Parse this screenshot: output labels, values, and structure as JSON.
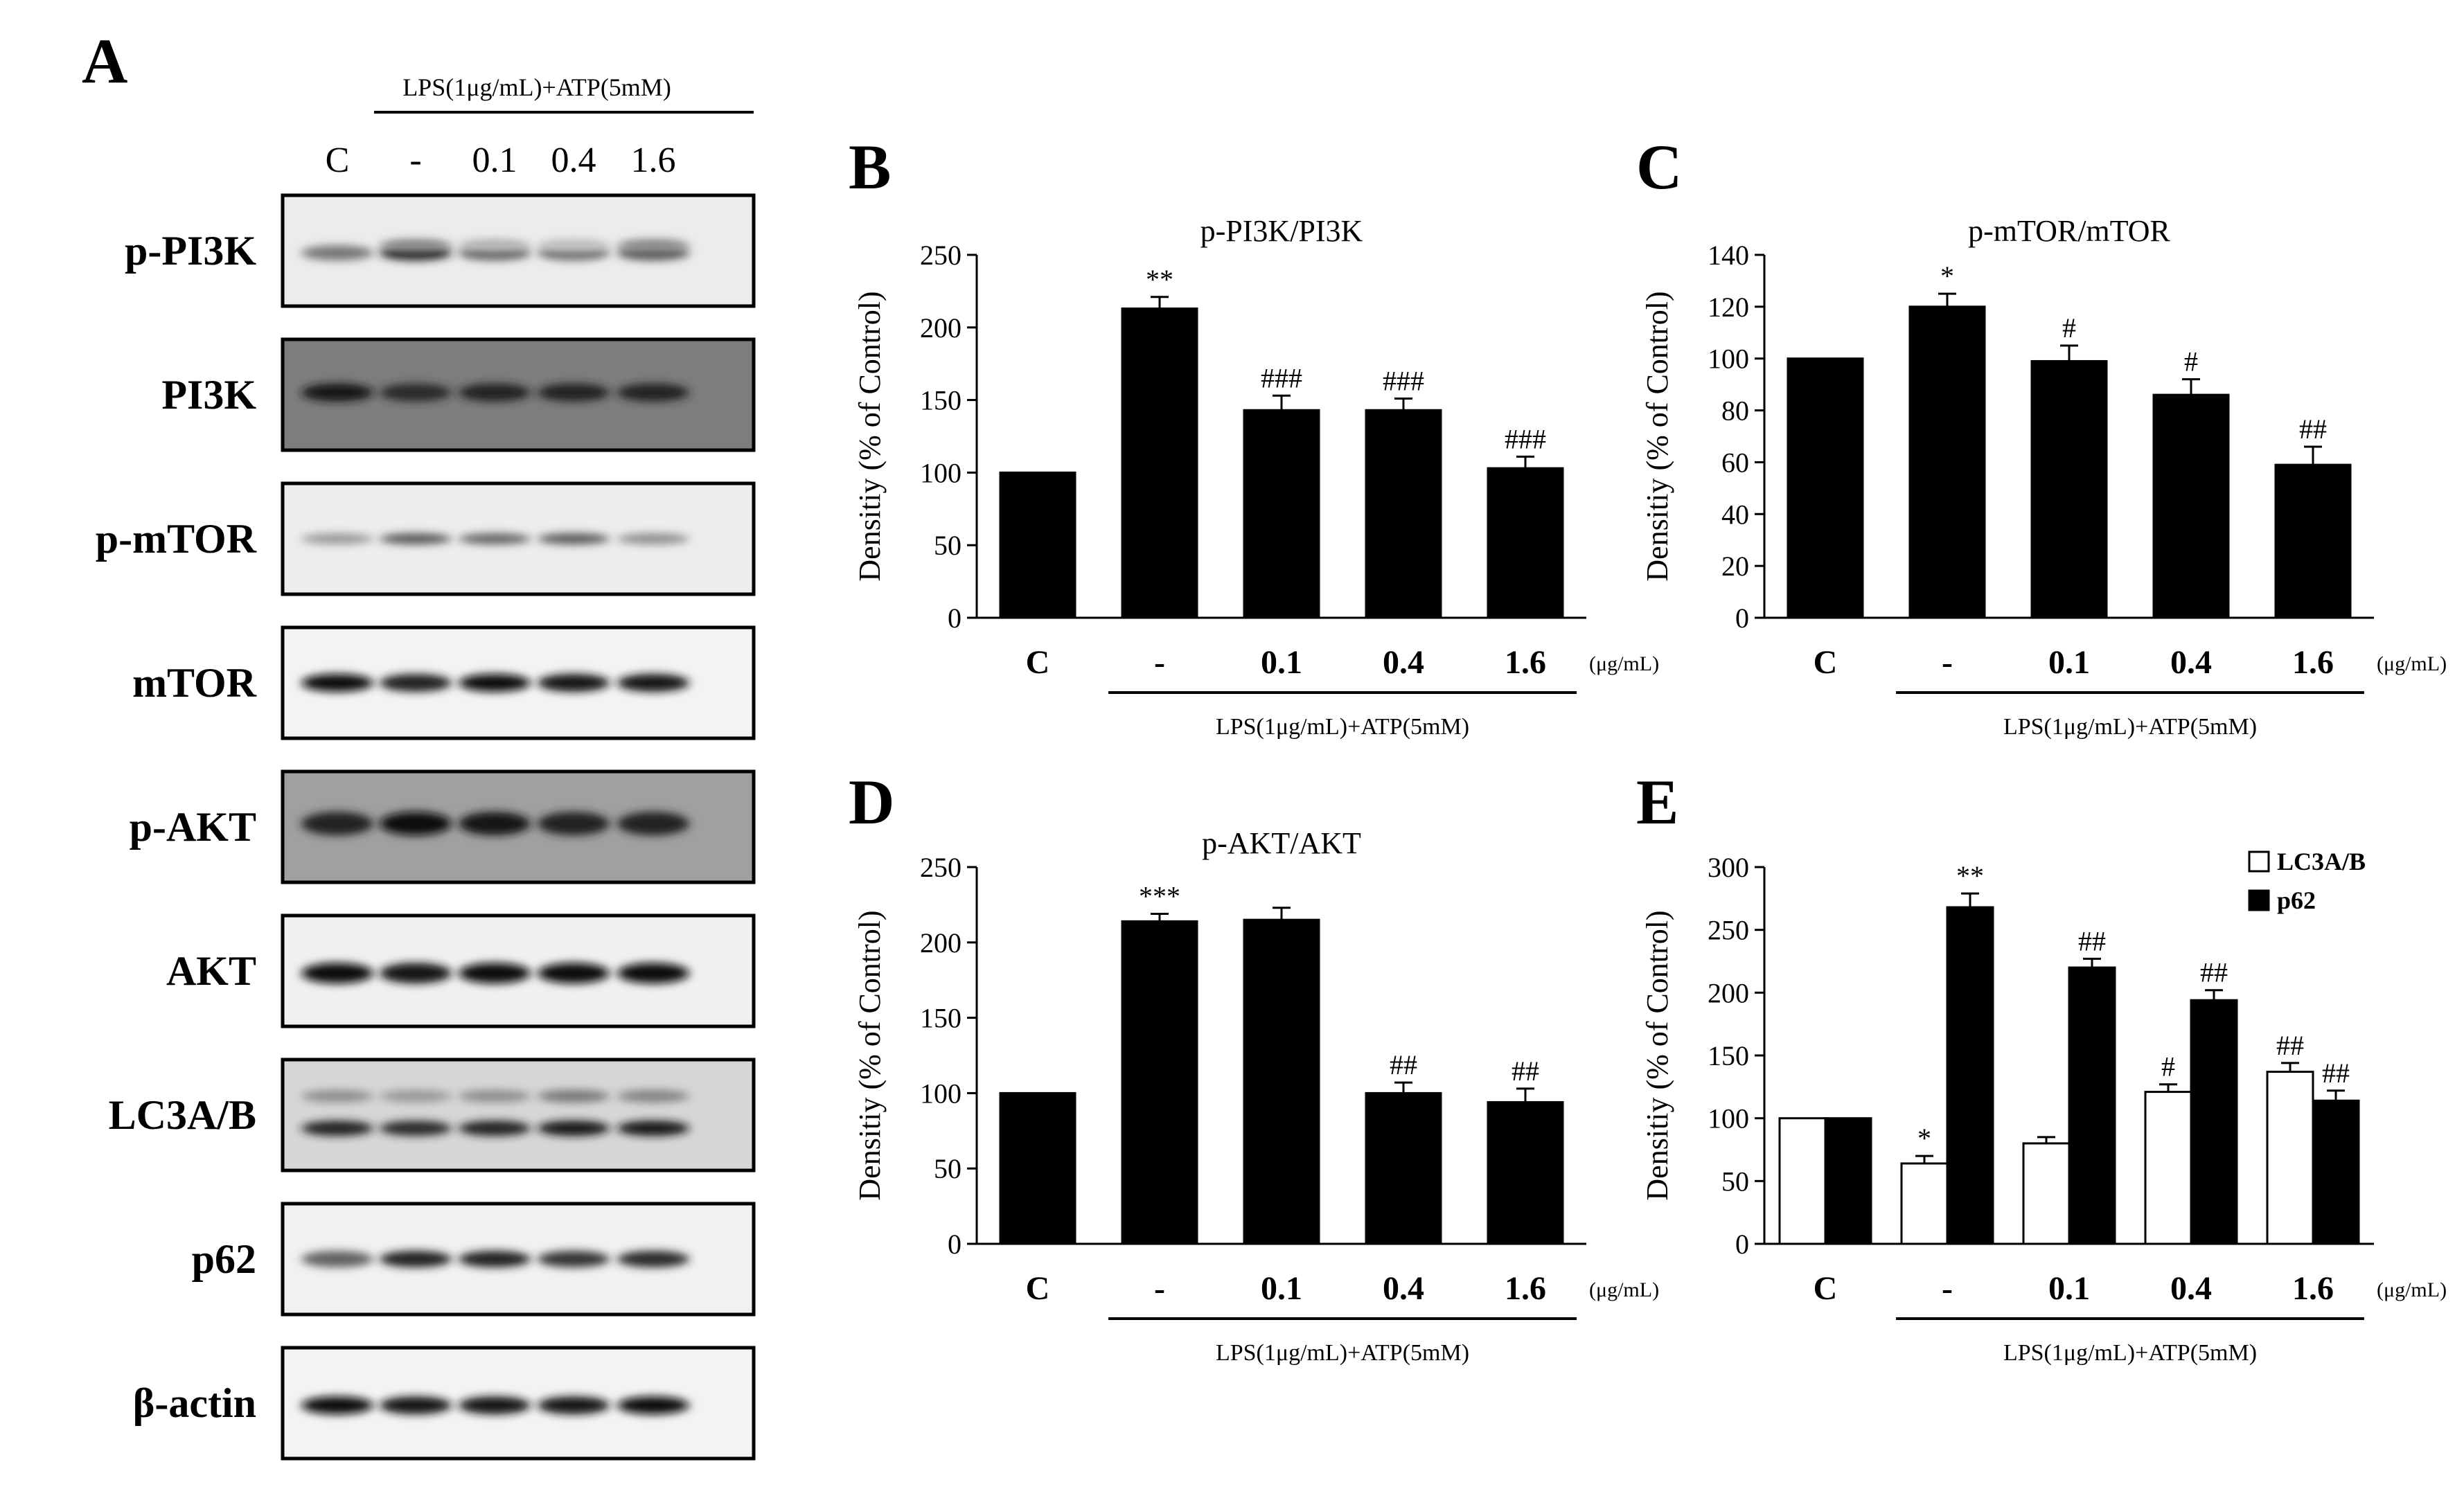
{
  "panel_a": {
    "letter": "A",
    "treatment": "LPS(1μg/mL)+ATP(5mM)",
    "lanes": [
      "C",
      "-",
      "0.1",
      "0.4",
      "1.6"
    ],
    "rows": [
      "p-PI3K",
      "PI3K",
      "p-mTOR",
      "mTOR",
      "p-AKT",
      "AKT",
      "LC3A/B",
      "p62",
      "β-actin"
    ]
  },
  "chart_data": [
    {
      "panel": "B",
      "type": "bar",
      "title": "p-PI3K/PI3K",
      "ylabel": "Densitiy (% of Control)",
      "ylim": [
        0,
        250
      ],
      "yticks": [
        0,
        50,
        100,
        150,
        200,
        250
      ],
      "categories": [
        "C",
        "-",
        "0.1",
        "0.4",
        "1.6"
      ],
      "unit": "(μg/mL)",
      "group_label": "LPS(1μg/mL)+ATP(5mM)",
      "series": [
        {
          "values": [
            100,
            213,
            143,
            143,
            103
          ],
          "errors": [
            0,
            8,
            10,
            8,
            8
          ],
          "annotations": [
            "",
            "**",
            "###",
            "###",
            "###"
          ]
        }
      ]
    },
    {
      "panel": "C",
      "type": "bar",
      "title": "p-mTOR/mTOR",
      "ylabel": "Densitiy (% of Control)",
      "ylim": [
        0,
        140
      ],
      "yticks": [
        0,
        20,
        40,
        60,
        80,
        100,
        120,
        140
      ],
      "categories": [
        "C",
        "-",
        "0.1",
        "0.4",
        "1.6"
      ],
      "unit": "(μg/mL)",
      "group_label": "LPS(1μg/mL)+ATP(5mM)",
      "series": [
        {
          "values": [
            100,
            120,
            99,
            86,
            59
          ],
          "errors": [
            0,
            5,
            6,
            6,
            7
          ],
          "annotations": [
            "",
            "*",
            "#",
            "#",
            "##"
          ]
        }
      ]
    },
    {
      "panel": "D",
      "type": "bar",
      "title": "p-AKT/AKT",
      "ylabel": "Densitiy (% of Control)",
      "ylim": [
        0,
        250
      ],
      "yticks": [
        0,
        50,
        100,
        150,
        200,
        250
      ],
      "categories": [
        "C",
        "-",
        "0.1",
        "0.4",
        "1.6"
      ],
      "unit": "(μg/mL)",
      "group_label": "LPS(1μg/mL)+ATP(5mM)",
      "series": [
        {
          "values": [
            100,
            214,
            215,
            100,
            94
          ],
          "errors": [
            0,
            5,
            8,
            7,
            9
          ],
          "annotations": [
            "",
            "***",
            "",
            "##",
            "##"
          ]
        }
      ]
    },
    {
      "panel": "E",
      "type": "bar",
      "title": "",
      "ylabel": "Densitiy (% of Control)",
      "ylim": [
        0,
        300
      ],
      "yticks": [
        0,
        50,
        100,
        150,
        200,
        250,
        300
      ],
      "categories": [
        "C",
        "-",
        "0.1",
        "0.4",
        "1.6"
      ],
      "unit": "(μg/mL)",
      "group_label": "LPS(1μg/mL)+ATP(5mM)",
      "legend": "top-right",
      "series": [
        {
          "name": "LC3A/B",
          "fill": "#ffffff",
          "values": [
            100,
            64,
            80,
            121,
            137
          ],
          "errors": [
            0,
            6,
            5,
            6,
            7
          ],
          "annotations": [
            "",
            "*",
            "",
            "#",
            "##"
          ]
        },
        {
          "name": "p62",
          "fill": "#000000",
          "values": [
            100,
            268,
            220,
            194,
            114
          ],
          "errors": [
            0,
            11,
            7,
            8,
            8
          ],
          "annotations": [
            "",
            "**",
            "##",
            "##",
            "##"
          ]
        }
      ]
    }
  ]
}
